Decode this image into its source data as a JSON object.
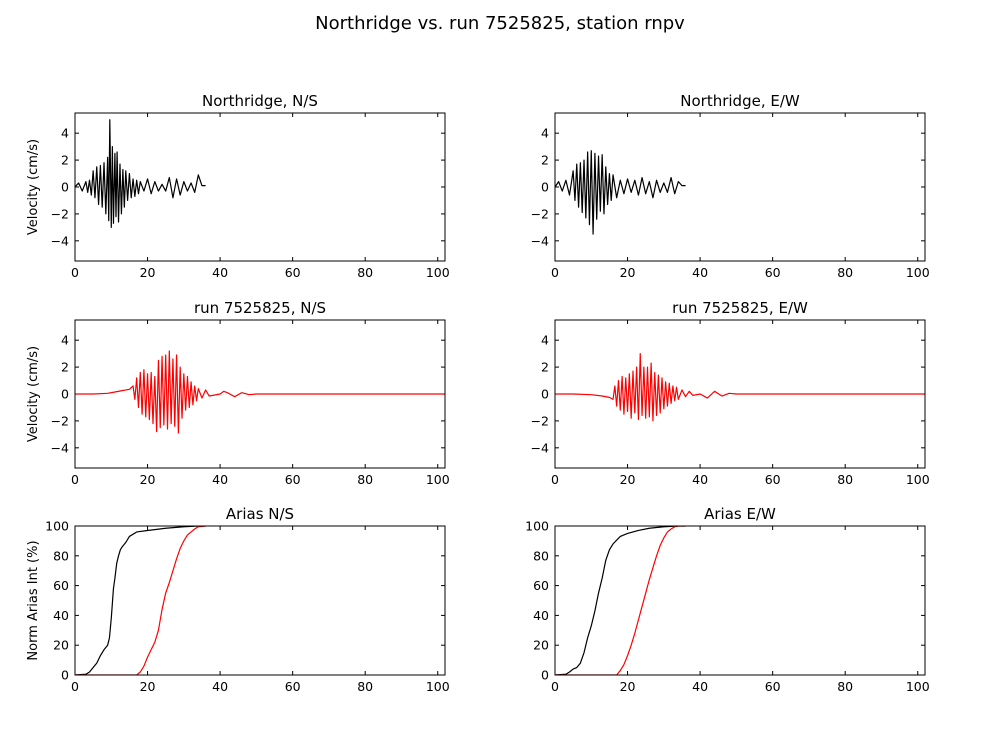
{
  "title": "Northridge vs. run 7525825, station rnpv",
  "colors": {
    "recorded": "#000000",
    "simulated": "#ff0000"
  },
  "chart_data": [
    {
      "type": "line",
      "title": "Northridge, N/S",
      "xlabel": "",
      "ylabel": "Velocity (cm/s)",
      "xlim": [
        0,
        102
      ],
      "ylim": [
        -5.5,
        5.5
      ],
      "xticks": [
        "0",
        "20",
        "40",
        "60",
        "80",
        "100"
      ],
      "yticks": [
        "4",
        "2",
        "0",
        "−2",
        "−4"
      ],
      "series": [
        {
          "color": "#000000",
          "x": [
            0,
            1,
            2,
            3,
            3.5,
            4,
            4.5,
            5,
            5.5,
            6,
            6.5,
            7,
            7.5,
            8,
            8.5,
            9,
            9.3,
            9.6,
            10,
            10.3,
            10.6,
            11,
            11.3,
            11.6,
            12,
            12.4,
            12.8,
            13.2,
            13.6,
            14,
            14.5,
            15,
            15.5,
            16,
            16.5,
            17,
            17.5,
            18,
            19,
            20,
            21,
            22,
            23,
            24,
            25,
            26,
            27,
            28,
            29,
            30,
            31,
            32,
            33,
            34,
            35,
            36
          ],
          "y": [
            0,
            0.3,
            -0.3,
            0.4,
            -0.4,
            0.5,
            -0.6,
            1.2,
            -0.8,
            1.5,
            -1.3,
            1.6,
            -1.5,
            1.8,
            -2.0,
            2.2,
            -2.5,
            5.0,
            -3.0,
            3.0,
            -2.7,
            2.5,
            -2.2,
            2.6,
            -2.6,
            1.7,
            -2.0,
            1.3,
            -1.5,
            1.2,
            -1.0,
            1.0,
            -0.8,
            0.6,
            -0.7,
            0.5,
            -0.5,
            0.4,
            -0.3,
            0.6,
            -0.5,
            0.4,
            -0.3,
            0.2,
            -0.3,
            0.7,
            -0.8,
            0.6,
            -0.6,
            0.4,
            -0.3,
            0.3,
            -0.4,
            0.9,
            0.1,
            0.1
          ]
        }
      ]
    },
    {
      "type": "line",
      "title": "Northridge, E/W",
      "xlabel": "",
      "ylabel": "",
      "xlim": [
        0,
        102
      ],
      "ylim": [
        -5.5,
        5.5
      ],
      "xticks": [
        "0",
        "20",
        "40",
        "60",
        "80",
        "100"
      ],
      "yticks": [
        "4",
        "2",
        "0",
        "−2",
        "−4"
      ],
      "series": [
        {
          "color": "#000000",
          "x": [
            0,
            1,
            2,
            3,
            4,
            5,
            5.5,
            6,
            6.5,
            7,
            7.5,
            8,
            8.5,
            9,
            9.5,
            10,
            10.5,
            11,
            11.5,
            12,
            12.5,
            13,
            13.5,
            14,
            14.5,
            15,
            15.5,
            16,
            17,
            18,
            19,
            20,
            21,
            22,
            23,
            24,
            25,
            26,
            27,
            28,
            29,
            30,
            31,
            32,
            33,
            34,
            35,
            36
          ],
          "y": [
            0,
            0.4,
            -0.3,
            0.5,
            -0.6,
            1.2,
            -1.0,
            1.7,
            -1.5,
            1.8,
            -1.9,
            2.0,
            -2.3,
            2.6,
            -2.8,
            2.7,
            -3.5,
            2.5,
            -2.4,
            2.3,
            -1.8,
            2.4,
            -2.0,
            1.5,
            -1.3,
            1.0,
            -1.0,
            0.9,
            -0.8,
            0.5,
            -0.5,
            0.6,
            -0.4,
            0.5,
            -0.6,
            0.7,
            -0.5,
            0.4,
            -0.8,
            0.5,
            -0.4,
            0.3,
            -0.4,
            0.7,
            -0.5,
            0.4,
            0.1,
            0.1
          ]
        }
      ]
    },
    {
      "type": "line",
      "title": "run 7525825, N/S",
      "xlabel": "",
      "ylabel": "Velocity (cm/s)",
      "xlim": [
        0,
        102
      ],
      "ylim": [
        -5.5,
        5.5
      ],
      "xticks": [
        "0",
        "20",
        "40",
        "60",
        "80",
        "100"
      ],
      "yticks": [
        "4",
        "2",
        "0",
        "−2",
        "−4"
      ],
      "series": [
        {
          "color": "#ff0000",
          "x": [
            0,
            5,
            9,
            11,
            13,
            15,
            16,
            16.5,
            17,
            17.5,
            18,
            18.5,
            19,
            19.5,
            20,
            20.5,
            21,
            21.5,
            22,
            22.5,
            23,
            23.5,
            24,
            24.5,
            25,
            25.5,
            26,
            26.5,
            27,
            27.5,
            28,
            28.5,
            29,
            29.5,
            30,
            30.5,
            31,
            31.5,
            32,
            32.5,
            33,
            33.5,
            34,
            35,
            36,
            37,
            38,
            40,
            41,
            42,
            44,
            46,
            48,
            50,
            55,
            60,
            80,
            102
          ],
          "y": [
            0,
            0,
            0.05,
            0.15,
            0.25,
            0.35,
            0.6,
            -0.4,
            1.2,
            -1.0,
            1.6,
            -1.5,
            1.8,
            -1.7,
            1.5,
            -1.9,
            1.6,
            -2.2,
            1.3,
            -2.8,
            2.5,
            -2.5,
            2.8,
            -2.3,
            2.9,
            -2.6,
            3.2,
            -2.2,
            2.6,
            -2.4,
            2.9,
            -2.9,
            2.0,
            -1.8,
            1.5,
            -1.2,
            1.3,
            -1.0,
            0.9,
            -0.8,
            0.6,
            -0.5,
            0.4,
            -0.3,
            0.3,
            -0.15,
            -0.1,
            0,
            0.2,
            0.1,
            -0.2,
            0.1,
            -0.05,
            0,
            0,
            0,
            0,
            0
          ]
        }
      ]
    },
    {
      "type": "line",
      "title": "run 7525825, E/W",
      "xlabel": "",
      "ylabel": "",
      "xlim": [
        0,
        102
      ],
      "ylim": [
        -5.5,
        5.5
      ],
      "xticks": [
        "0",
        "20",
        "40",
        "60",
        "80",
        "100"
      ],
      "yticks": [
        "4",
        "2",
        "0",
        "−2",
        "−4"
      ],
      "series": [
        {
          "color": "#ff0000",
          "x": [
            0,
            5,
            10,
            13,
            15,
            16,
            16.5,
            17,
            17.5,
            18,
            18.5,
            19,
            19.5,
            20,
            20.5,
            21,
            21.5,
            22,
            22.5,
            23,
            23.5,
            24,
            24.5,
            25,
            25.5,
            26,
            26.5,
            27,
            27.5,
            28,
            28.5,
            29,
            29.5,
            30,
            30.5,
            31,
            31.5,
            32,
            32.5,
            33,
            33.5,
            34,
            35,
            36,
            37,
            38,
            40,
            42,
            44,
            46,
            48,
            50,
            55,
            60,
            80,
            102
          ],
          "y": [
            0,
            0,
            -0.05,
            -0.15,
            -0.25,
            -0.4,
            0.6,
            -0.9,
            1.0,
            -1.2,
            1.3,
            -1.5,
            1.2,
            -1.3,
            1.5,
            -1.8,
            1.7,
            -1.4,
            2.0,
            -1.9,
            3.0,
            -1.6,
            2.0,
            -1.8,
            2.0,
            -1.7,
            2.3,
            -2.0,
            1.6,
            -1.6,
            1.4,
            -1.4,
            1.2,
            -1.1,
            0.9,
            -0.9,
            0.8,
            -0.7,
            0.6,
            -0.5,
            0.5,
            -0.4,
            0.3,
            -0.2,
            0.2,
            -0.1,
            0,
            -0.3,
            0.2,
            -0.15,
            0.05,
            0,
            0,
            0,
            0,
            0
          ]
        }
      ]
    },
    {
      "type": "line",
      "title": "Arias N/S",
      "xlabel": "",
      "ylabel": "Norm Arias Int (%)",
      "xlim": [
        0,
        102
      ],
      "ylim": [
        0,
        100
      ],
      "xticks": [
        "0",
        "20",
        "40",
        "60",
        "80",
        "100"
      ],
      "yticks": [
        "100",
        "80",
        "60",
        "40",
        "20",
        "0"
      ],
      "series": [
        {
          "color": "#000000",
          "x": [
            0,
            3,
            4,
            5,
            6,
            7,
            8,
            9,
            9.5,
            10,
            10.3,
            10.6,
            11,
            11.5,
            12,
            12.5,
            13,
            14,
            15,
            17,
            20,
            25,
            30,
            34,
            36
          ],
          "y": [
            0,
            0.5,
            2,
            5,
            8,
            13,
            17,
            20,
            25,
            38,
            48,
            58,
            65,
            75,
            80,
            84,
            86,
            89,
            93,
            96,
            97,
            98.5,
            99.5,
            100,
            100
          ]
        },
        {
          "color": "#ff0000",
          "x": [
            0,
            17,
            18,
            19,
            20,
            21,
            22,
            23,
            24,
            25,
            26,
            27,
            28,
            29,
            30,
            31,
            32,
            33,
            34,
            36
          ],
          "y": [
            0,
            0,
            2,
            6,
            12,
            17,
            22,
            30,
            44,
            55,
            62,
            70,
            78,
            85,
            90,
            94,
            96,
            98,
            99.5,
            100
          ]
        }
      ]
    },
    {
      "type": "line",
      "title": "Arias E/W",
      "xlabel": "",
      "ylabel": "",
      "xlim": [
        0,
        102
      ],
      "ylim": [
        0,
        100
      ],
      "xticks": [
        "0",
        "20",
        "40",
        "60",
        "80",
        "100"
      ],
      "yticks": [
        "100",
        "80",
        "60",
        "40",
        "20",
        "0"
      ],
      "series": [
        {
          "color": "#000000",
          "x": [
            0,
            3,
            4,
            5,
            6,
            7,
            8,
            9,
            10,
            11,
            12,
            13,
            14,
            15,
            16,
            18,
            20,
            23,
            26,
            30,
            34,
            36
          ],
          "y": [
            0,
            0.5,
            2,
            4,
            5,
            8,
            15,
            25,
            33,
            43,
            55,
            65,
            77,
            84,
            88,
            93,
            95,
            97,
            98.5,
            99.5,
            100,
            100
          ]
        },
        {
          "color": "#ff0000",
          "x": [
            0,
            17,
            18,
            19,
            20,
            21,
            22,
            23,
            24,
            25,
            26,
            27,
            28,
            29,
            30,
            31,
            32,
            33,
            34,
            36
          ],
          "y": [
            0,
            0,
            3,
            7,
            13,
            20,
            28,
            37,
            46,
            55,
            64,
            72,
            80,
            87,
            92,
            96,
            98,
            99.5,
            100,
            100
          ]
        }
      ]
    }
  ]
}
